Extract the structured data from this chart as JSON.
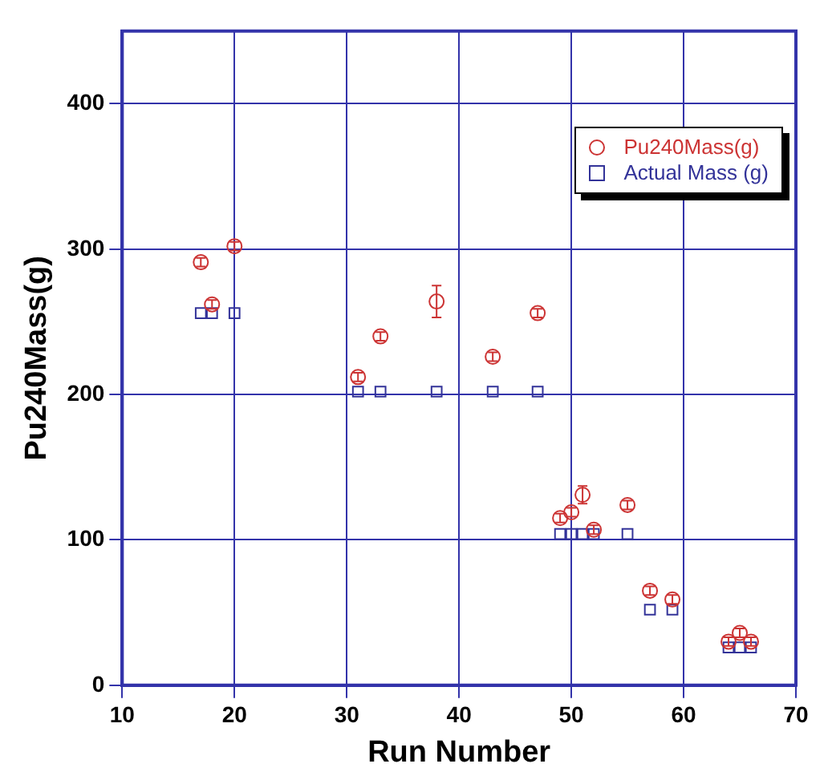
{
  "chart_data": {
    "type": "scatter",
    "xlabel": "Run Number",
    "ylabel": "Pu240Mass(g)",
    "xlim": [
      10,
      70
    ],
    "xticks": [
      10,
      20,
      30,
      40,
      50,
      60,
      70
    ],
    "ylim": [
      0,
      450
    ],
    "yticks": [
      0,
      100,
      200,
      300,
      400
    ],
    "grid": true,
    "legend": "top right",
    "series": [
      {
        "name": "Pu240Mass(g)",
        "color": "#cc3333",
        "marker": "circle",
        "x": [
          17,
          18,
          20,
          31,
          33,
          38,
          43,
          47,
          49,
          50,
          51,
          52,
          55,
          57,
          59,
          64,
          65,
          66
        ],
        "values": [
          291,
          262,
          302,
          212,
          240,
          264,
          226,
          256,
          115,
          119,
          131,
          107,
          124,
          65,
          59,
          30,
          36,
          30
        ],
        "errors": [
          3,
          3,
          3,
          3,
          3,
          11,
          3,
          3,
          3,
          3,
          6,
          3,
          3,
          3,
          3,
          3,
          3,
          3
        ]
      },
      {
        "name": "Actual Mass (g)",
        "color": "#333399",
        "marker": "square",
        "x": [
          17,
          18,
          20,
          31,
          33,
          38,
          43,
          47,
          49,
          50,
          51,
          52,
          55,
          57,
          59,
          64,
          65,
          66
        ],
        "values": [
          256,
          256,
          256,
          202,
          202,
          202,
          202,
          202,
          104,
          104,
          104,
          104,
          104,
          52,
          52,
          26,
          26,
          26
        ]
      }
    ]
  }
}
